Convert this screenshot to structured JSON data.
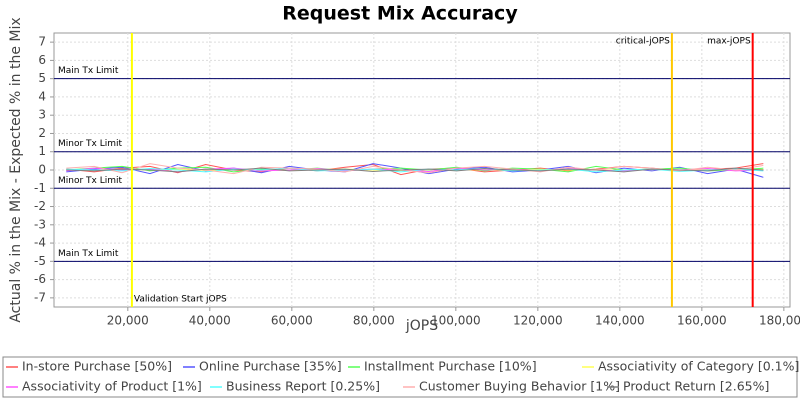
{
  "chart_data": {
    "type": "line",
    "title": "Request Mix Accuracy",
    "x_label": "jOPS",
    "y_label": "Actual % in the Mix - Expected % in the Mix",
    "xlim": [
      2000,
      181500
    ],
    "ylim": [
      -7.5,
      7.5
    ],
    "xticks": [
      {
        "value": 20000,
        "label": "20,000"
      },
      {
        "value": 40000,
        "label": "40,000"
      },
      {
        "value": 60000,
        "label": "60,000"
      },
      {
        "value": 80000,
        "label": "80,000"
      },
      {
        "value": 100000,
        "label": "100,000"
      },
      {
        "value": 120000,
        "label": "120,000"
      },
      {
        "value": 140000,
        "label": "140,000"
      },
      {
        "value": 160000,
        "label": "160,000"
      },
      {
        "value": 180000,
        "label": "180,000"
      }
    ],
    "yticks": [
      -7,
      -6,
      -5,
      -4,
      -3,
      -2,
      -1,
      0,
      1,
      2,
      3,
      4,
      5,
      6,
      7
    ],
    "grid": true,
    "x": [
      5000,
      11800,
      18600,
      25400,
      32200,
      39000,
      45800,
      52600,
      59400,
      66200,
      73000,
      79800,
      86600,
      93400,
      100200,
      107000,
      113800,
      120600,
      127400,
      134200,
      141000,
      147800,
      154600,
      161400,
      168200,
      175000
    ],
    "series": [
      {
        "name": "In-store Purchase [50%]",
        "color": "#ff5555",
        "values": [
          0.05,
          -0.1,
          0.1,
          0.2,
          -0.15,
          0.3,
          0.0,
          -0.1,
          0.1,
          -0.05,
          0.15,
          0.3,
          -0.25,
          0.05,
          0.1,
          -0.1,
          0.0,
          0.1,
          -0.05,
          0.05,
          0.2,
          0.1,
          -0.05,
          0.05,
          0.1,
          0.35
        ]
      },
      {
        "name": "Online Purchase [35%]",
        "color": "#5555ff",
        "values": [
          -0.1,
          0.05,
          0.15,
          -0.2,
          0.3,
          -0.05,
          0.1,
          -0.15,
          0.2,
          0.0,
          -0.1,
          0.35,
          0.1,
          -0.2,
          0.05,
          0.15,
          -0.1,
          0.0,
          0.2,
          -0.15,
          0.1,
          -0.05,
          0.15,
          -0.2,
          0.05,
          -0.4
        ]
      },
      {
        "name": "Installment Purchase [10%]",
        "color": "#55ff55",
        "values": [
          0.0,
          0.1,
          0.2,
          -0.05,
          0.1,
          0.15,
          -0.1,
          0.05,
          0.0,
          0.1,
          -0.05,
          0.05,
          0.1,
          0.0,
          0.15,
          -0.05,
          0.1,
          0.05,
          -0.1,
          0.2,
          0.0,
          0.05,
          0.1,
          -0.05,
          0.0,
          0.1
        ]
      },
      {
        "name": "Associativity of Category [0.1%]",
        "color": "#ffff55",
        "values": [
          0.02,
          -0.03,
          0.05,
          0.0,
          0.03,
          -0.02,
          0.04,
          0.0,
          -0.03,
          0.02,
          0.05,
          0.0,
          -0.02,
          0.03,
          0.0,
          0.02,
          -0.03,
          0.04,
          0.0,
          0.02,
          -0.02,
          0.03,
          0.0,
          0.02,
          -0.01,
          0.03
        ]
      },
      {
        "name": "Associativity of Product [1%]",
        "color": "#ff55ff",
        "values": [
          -0.05,
          0.1,
          0.0,
          0.05,
          -0.1,
          0.05,
          0.1,
          -0.05,
          0.0,
          0.08,
          -0.05,
          0.05,
          0.0,
          -0.08,
          0.1,
          0.0,
          0.05,
          -0.05,
          0.08,
          0.0,
          -0.05,
          0.05,
          0.0,
          0.08,
          -0.05,
          0.0
        ]
      },
      {
        "name": "Business Report [0.25%]",
        "color": "#55ffff",
        "values": [
          0.05,
          0.0,
          -0.05,
          0.08,
          0.0,
          -0.1,
          0.05,
          0.0,
          0.1,
          -0.05,
          0.0,
          0.05,
          -0.1,
          0.05,
          0.0,
          0.08,
          -0.05,
          0.0,
          0.05,
          -0.1,
          0.0,
          0.05,
          -0.08,
          0.0,
          0.05,
          -0.05
        ]
      },
      {
        "name": "Customer Buying Behavior [1%]",
        "color": "#ffafaf",
        "values": [
          0.1,
          0.2,
          -0.15,
          0.35,
          0.1,
          0.0,
          -0.2,
          0.15,
          0.1,
          0.05,
          -0.1,
          0.2,
          0.0,
          -0.15,
          0.1,
          0.2,
          0.05,
          -0.1,
          0.15,
          0.0,
          0.2,
          0.1,
          -0.05,
          0.15,
          0.0,
          0.25
        ]
      },
      {
        "name": "Product Return [2.65%]",
        "color": "#808080",
        "values": [
          0.0,
          -0.05,
          0.05,
          0.0,
          -0.1,
          0.05,
          0.0,
          0.1,
          -0.05,
          0.0,
          0.05,
          -0.08,
          0.0,
          0.05,
          -0.05,
          0.08,
          0.0,
          -0.05,
          0.05,
          0.0,
          -0.1,
          0.05,
          0.0,
          -0.05,
          0.1,
          0.0
        ]
      }
    ],
    "hlines": [
      {
        "value": 5,
        "label": "Main Tx Limit",
        "color": "#000066"
      },
      {
        "value": 1,
        "label": "Minor Tx Limit",
        "color": "#000066"
      },
      {
        "value": -1,
        "label": "Minor Tx Limit",
        "color": "#000066"
      },
      {
        "value": -5,
        "label": "Main Tx Limit",
        "color": "#000066"
      }
    ],
    "vlines": [
      {
        "value": 21000,
        "label": "Validation Start jOPS",
        "color": "#ffff00"
      },
      {
        "value": 152700,
        "label": "critical-jOPS",
        "color": "#ffc800"
      },
      {
        "value": 172400,
        "label": "max-jOPS",
        "color": "#ff0000"
      }
    ]
  }
}
